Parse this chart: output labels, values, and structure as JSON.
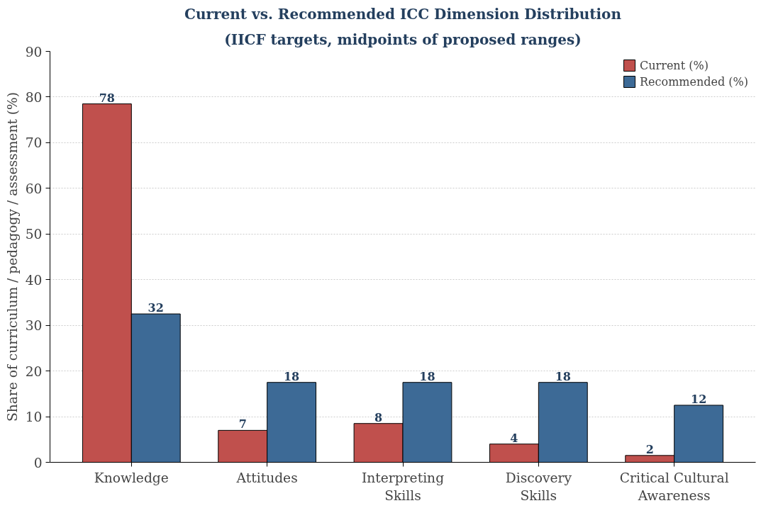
{
  "chart_data": {
    "type": "bar",
    "title": "Current vs. Recommended ICC Dimension Distribution",
    "subtitle": "(IICF targets, midpoints of proposed ranges)",
    "ylabel": "Share of curriculum / pedagogy / assessment (%)",
    "categories": [
      "Knowledge",
      "Attitudes",
      "Interpreting Skills",
      "Discovery Skills",
      "Critical Cultural Awareness"
    ],
    "series": [
      {
        "name": "Current (%)",
        "color": "#c0504d",
        "values": [
          78.5,
          7,
          8.5,
          4,
          1.5
        ],
        "value_labels": [
          "78",
          "7",
          "8",
          "4",
          "2"
        ]
      },
      {
        "name": "Recommended (%)",
        "color": "#3d6a96",
        "values": [
          32.5,
          17.5,
          17.5,
          17.5,
          12.5
        ],
        "value_labels": [
          "32",
          "18",
          "18",
          "18",
          "12"
        ]
      }
    ],
    "ylim": [
      0,
      90
    ],
    "yticks": [
      0,
      10,
      20,
      30,
      40,
      50,
      60,
      70,
      80,
      90
    ],
    "grid": "y",
    "legend": "top right"
  }
}
